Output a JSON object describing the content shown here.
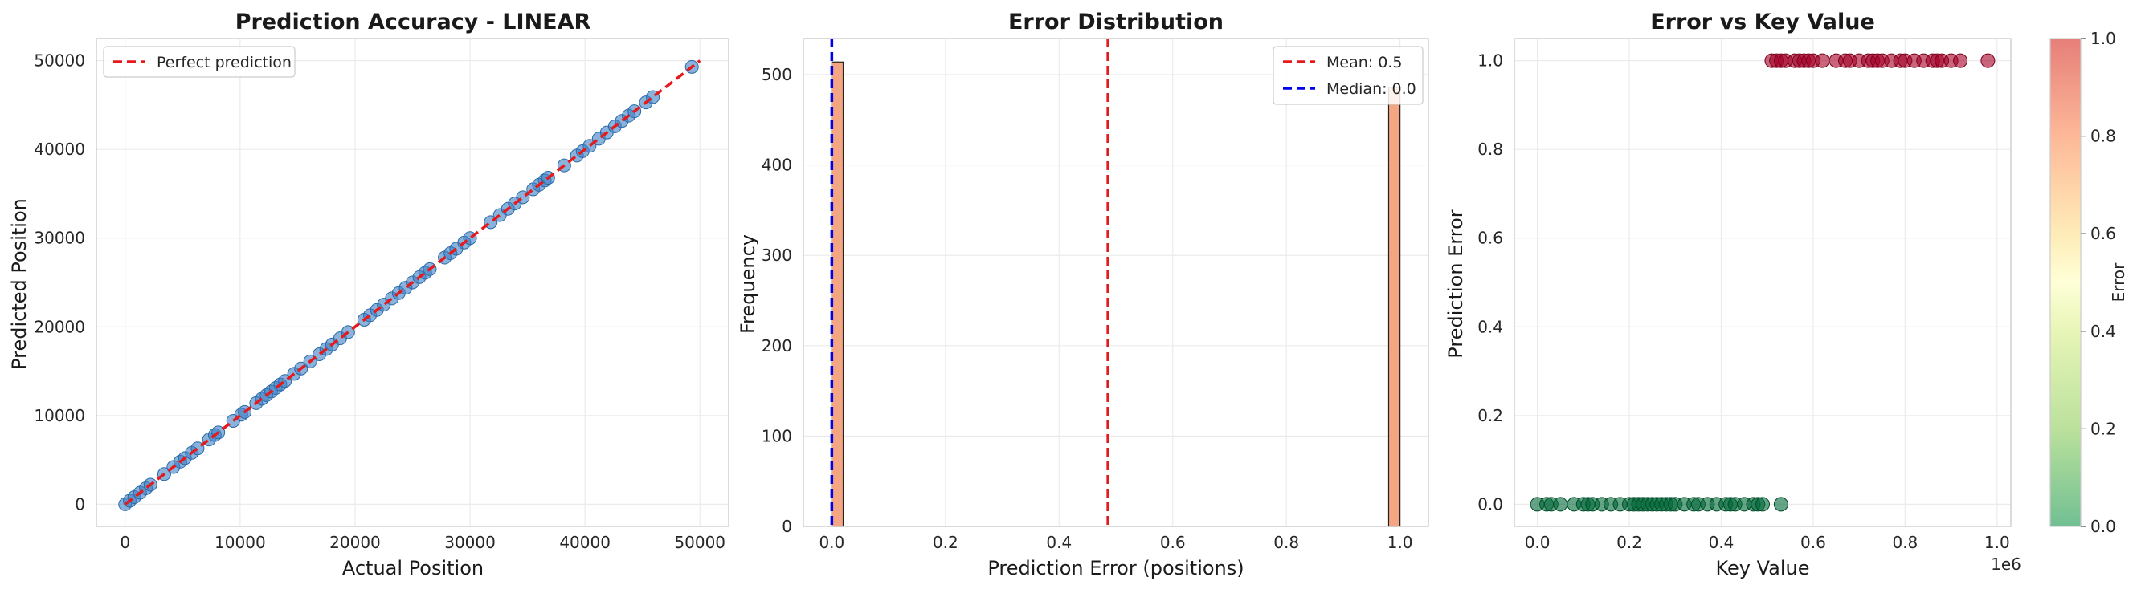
{
  "chart_data": [
    {
      "type": "scatter",
      "title": "Prediction Accuracy - LINEAR",
      "xlabel": "Actual Position",
      "ylabel": "Predicted Position",
      "xlim": [
        -2500,
        52500
      ],
      "ylim": [
        -2500,
        52500
      ],
      "xticks": [
        0,
        10000,
        20000,
        30000,
        40000,
        50000
      ],
      "yticks": [
        0,
        10000,
        20000,
        30000,
        40000,
        50000
      ],
      "grid": true,
      "legend": {
        "position": "top-left",
        "entries": [
          {
            "label": "Perfect prediction",
            "color": "#e41a1c",
            "style": "dashed"
          }
        ]
      },
      "reference_line": {
        "x": [
          0,
          50000
        ],
        "y": [
          0,
          50000
        ]
      },
      "point_color": "#3a7fc4",
      "points": [
        [
          0,
          0
        ],
        [
          400,
          400
        ],
        [
          800,
          800
        ],
        [
          1300,
          1300
        ],
        [
          1800,
          1800
        ],
        [
          2200,
          2200
        ],
        [
          3400,
          3400
        ],
        [
          4200,
          4200
        ],
        [
          4800,
          4800
        ],
        [
          5200,
          5200
        ],
        [
          5800,
          5800
        ],
        [
          6300,
          6300
        ],
        [
          7300,
          7300
        ],
        [
          7800,
          7800
        ],
        [
          8100,
          8100
        ],
        [
          9400,
          9400
        ],
        [
          10100,
          10100
        ],
        [
          10400,
          10400
        ],
        [
          11400,
          11400
        ],
        [
          11900,
          11900
        ],
        [
          12300,
          12300
        ],
        [
          12700,
          12700
        ],
        [
          13100,
          13100
        ],
        [
          13500,
          13500
        ],
        [
          13900,
          13900
        ],
        [
          14700,
          14700
        ],
        [
          15300,
          15300
        ],
        [
          16100,
          16100
        ],
        [
          16900,
          16900
        ],
        [
          17500,
          17500
        ],
        [
          18000,
          18000
        ],
        [
          18700,
          18700
        ],
        [
          19400,
          19400
        ],
        [
          20800,
          20800
        ],
        [
          21300,
          21300
        ],
        [
          21900,
          21900
        ],
        [
          22500,
          22500
        ],
        [
          23200,
          23200
        ],
        [
          23800,
          23800
        ],
        [
          24400,
          24400
        ],
        [
          25000,
          25000
        ],
        [
          25600,
          25600
        ],
        [
          26100,
          26100
        ],
        [
          26500,
          26500
        ],
        [
          27800,
          27800
        ],
        [
          28300,
          28300
        ],
        [
          28800,
          28800
        ],
        [
          29500,
          29500
        ],
        [
          30000,
          30000
        ],
        [
          31800,
          31800
        ],
        [
          32600,
          32600
        ],
        [
          33300,
          33300
        ],
        [
          33900,
          33900
        ],
        [
          34600,
          34600
        ],
        [
          35500,
          35500
        ],
        [
          36000,
          36000
        ],
        [
          36500,
          36500
        ],
        [
          36800,
          36800
        ],
        [
          38200,
          38200
        ],
        [
          39300,
          39300
        ],
        [
          39800,
          39800
        ],
        [
          40400,
          40400
        ],
        [
          41200,
          41200
        ],
        [
          41900,
          41900
        ],
        [
          42600,
          42600
        ],
        [
          43200,
          43200
        ],
        [
          43800,
          43800
        ],
        [
          44300,
          44300
        ],
        [
          45300,
          45300
        ],
        [
          45900,
          45900
        ],
        [
          49300,
          49300
        ]
      ]
    },
    {
      "type": "bar",
      "title": "Error Distribution",
      "xlabel": "Prediction Error (positions)",
      "ylabel": "Frequency",
      "xlim": [
        -0.05,
        1.05
      ],
      "ylim": [
        0,
        540
      ],
      "xticks": [
        0.0,
        0.2,
        0.4,
        0.6,
        0.8,
        1.0
      ],
      "xtick_labels": [
        "0.0",
        "0.2",
        "0.4",
        "0.6",
        "0.8",
        "1.0"
      ],
      "yticks": [
        0,
        100,
        200,
        300,
        400,
        500
      ],
      "grid": true,
      "bar_color": "#f4a582",
      "bar_width": 0.02,
      "bars": [
        {
          "x_start": 0.0,
          "value": 514
        },
        {
          "x_start": 0.98,
          "value": 486
        }
      ],
      "vlines": [
        {
          "x": 0.486,
          "label": "Mean: 0.5",
          "color": "#e41a1c"
        },
        {
          "x": 0.0,
          "label": "Median: 0.0",
          "color": "#0000ee"
        }
      ],
      "legend": {
        "position": "top-right"
      }
    },
    {
      "type": "scatter",
      "title": "Error vs Key Value",
      "xlabel": "Key Value",
      "ylabel": "Prediction Error",
      "x_offset_text": "1e6",
      "xlim": [
        -0.05,
        1.03
      ],
      "ylim": [
        -0.05,
        1.05
      ],
      "xticks": [
        0.0,
        0.2,
        0.4,
        0.6,
        0.8,
        1.0
      ],
      "xtick_labels": [
        "0.0",
        "0.2",
        "0.4",
        "0.6",
        "0.8",
        "1.0"
      ],
      "yticks": [
        0.0,
        0.2,
        0.4,
        0.6,
        0.8,
        1.0
      ],
      "ytick_labels": [
        "0.0",
        "0.2",
        "0.4",
        "0.6",
        "0.8",
        "1.0"
      ],
      "grid": true,
      "colorbar": {
        "label": "Error",
        "min": 0.0,
        "max": 1.0,
        "ticks": [
          "0.0",
          "0.2",
          "0.4",
          "0.6",
          "0.8",
          "1.0"
        ],
        "colormap": "RdYlGn_r"
      },
      "points_error_0": [
        0.0,
        0.02,
        0.03,
        0.05,
        0.08,
        0.1,
        0.11,
        0.12,
        0.14,
        0.16,
        0.18,
        0.2,
        0.21,
        0.22,
        0.23,
        0.24,
        0.25,
        0.26,
        0.27,
        0.28,
        0.29,
        0.3,
        0.32,
        0.34,
        0.35,
        0.37,
        0.39,
        0.41,
        0.42,
        0.43,
        0.45,
        0.47,
        0.48,
        0.49,
        0.53
      ],
      "points_error_1": [
        0.51,
        0.52,
        0.53,
        0.54,
        0.56,
        0.57,
        0.58,
        0.59,
        0.6,
        0.62,
        0.65,
        0.67,
        0.68,
        0.7,
        0.72,
        0.73,
        0.74,
        0.75,
        0.77,
        0.79,
        0.8,
        0.82,
        0.84,
        0.86,
        0.87,
        0.88,
        0.9,
        0.92,
        0.98
      ]
    }
  ]
}
